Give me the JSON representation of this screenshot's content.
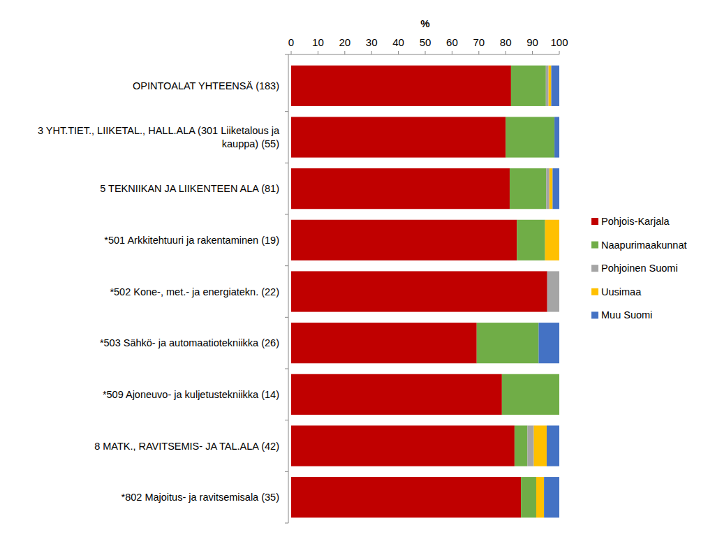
{
  "chart_data": {
    "type": "bar",
    "orientation": "horizontal",
    "stacked": true,
    "legend": "right",
    "y_label": "%",
    "ylim": [
      0,
      100
    ],
    "yticks": [
      0,
      10,
      20,
      30,
      40,
      50,
      60,
      70,
      80,
      90,
      100
    ],
    "categories": [
      "OPINTOALAT YHTEENSÄ (183)",
      "3 YHT.TIET., LIIKETAL., HALL.ALA (301 Liiketalous ja kauppa) (55)",
      "5 TEKNIIKAN JA LIIKENTEEN ALA (81)",
      "*501 Arkkitehtuuri ja rakentaminen (19)",
      "*502 Kone-, met.- ja energiatekn. (22)",
      "*503 Sähkö- ja automaatiotekniikka (26)",
      "*509 Ajoneuvo- ja kuljetustekniikka (14)",
      "8 MATK., RAVITSEMIS- JA TAL.ALA (42)",
      "*802 Majoitus- ja ravitsemisala (35)"
    ],
    "series": [
      {
        "name": "Pohjois-Karjala",
        "color": "#c00000",
        "values": [
          82.0,
          80.0,
          81.5,
          84.2,
          95.5,
          69.2,
          78.6,
          83.3,
          85.7
        ]
      },
      {
        "name": "Naapurimaakunnat",
        "color": "#70ad47",
        "values": [
          13.0,
          18.2,
          13.6,
          10.5,
          0,
          23.1,
          21.4,
          4.8,
          5.7
        ]
      },
      {
        "name": "Pohjoinen Suomi",
        "color": "#a5a5a5",
        "values": [
          1.0,
          0,
          1.2,
          0,
          4.5,
          0,
          0,
          2.4,
          0
        ]
      },
      {
        "name": "Uusimaa",
        "color": "#ffc000",
        "values": [
          1.0,
          0,
          1.2,
          5.3,
          0,
          0,
          0,
          4.8,
          2.9
        ]
      },
      {
        "name": "Muu Suomi",
        "color": "#4472c4",
        "values": [
          3.0,
          1.8,
          2.5,
          0,
          0,
          7.7,
          0,
          4.8,
          5.7
        ]
      }
    ]
  }
}
